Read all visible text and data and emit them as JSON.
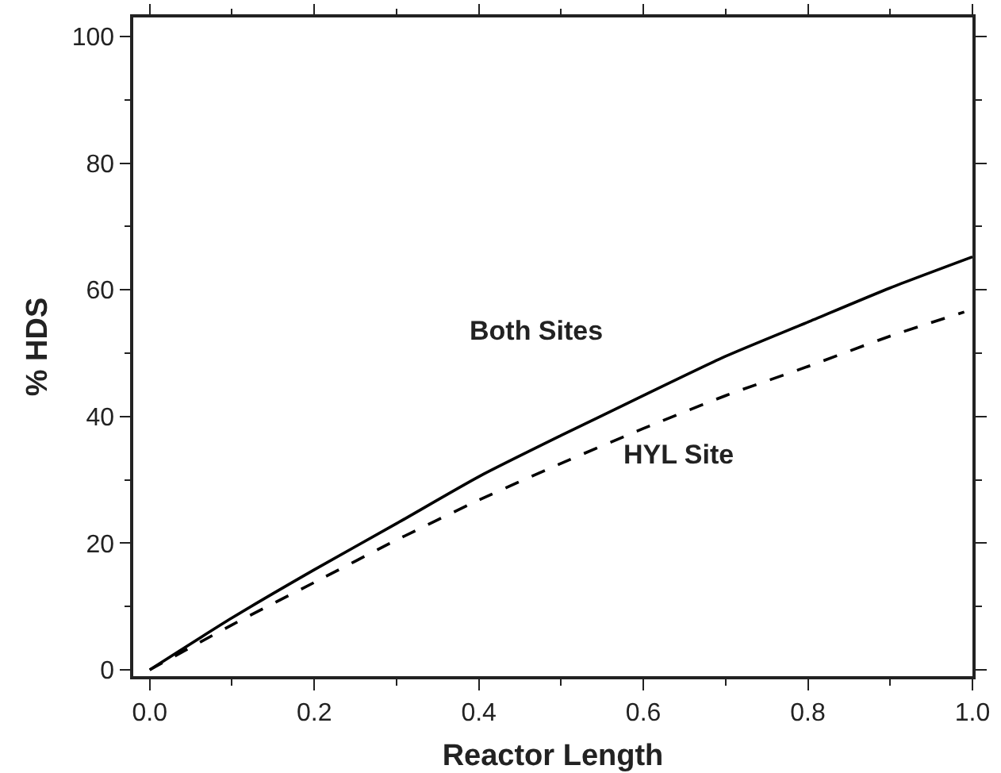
{
  "chart_data": {
    "type": "line",
    "xlabel": "Reactor Length",
    "ylabel": "% HDS",
    "xlim": [
      -0.02,
      1.0
    ],
    "ylim": [
      -1,
      103
    ],
    "xticks": [
      {
        "value": 0,
        "label": "0.0"
      },
      0.2,
      0.4,
      0.6,
      0.8,
      {
        "value": 1,
        "label": "1.0"
      }
    ],
    "yticks": [
      0,
      20,
      40,
      60,
      80,
      100
    ],
    "grid": false,
    "series": [
      {
        "color": "#000000",
        "line_style": "solid",
        "x": [
          0,
          0.1,
          0.2,
          0.3,
          0.4,
          0.5,
          0.6,
          0.7,
          0.8,
          0.9,
          1.0
        ],
        "values": [
          0,
          8.2,
          15.8,
          23.1,
          30.5,
          37.0,
          43.3,
          49.5,
          54.9,
          60.3,
          65.2
        ]
      },
      {
        "color": "#000000",
        "line_style": "dashed",
        "x": [
          0,
          0.1,
          0.2,
          0.3,
          0.4,
          0.5,
          0.6,
          0.7,
          0.8,
          0.9,
          0.99
        ],
        "values": [
          0,
          7.1,
          13.8,
          20.5,
          26.8,
          32.6,
          38.1,
          43.3,
          47.9,
          52.7,
          56.5
        ]
      }
    ],
    "annotations": [
      "Both Sites",
      "HYL Site"
    ]
  }
}
